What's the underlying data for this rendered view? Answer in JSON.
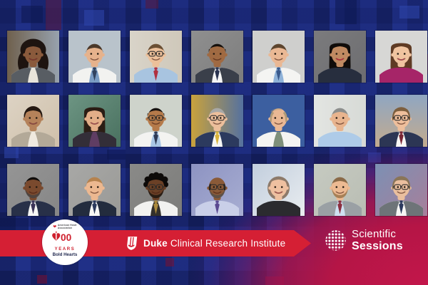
{
  "colors": {
    "bg_blue": "#1d2c7c",
    "banner_red": "#d51f34",
    "aha_red": "#cf202e",
    "navy_text": "#252c52",
    "corner_crimson": "#c2164a"
  },
  "aha": {
    "org": "American Heart Association",
    "number": "100",
    "years": "YEARS",
    "tagline": "Bold Hearts"
  },
  "banner": {
    "duke": "Duke",
    "institute": "Clinical Research Institute"
  },
  "sessions": {
    "line1": "Scientific",
    "line2": "Sessions"
  },
  "people": [
    {
      "desc": "smiling Black woman, long dark curly hair, gray blazer, tan-blue blurred office background",
      "bg": [
        "#6f604d",
        "#97a2ae"
      ],
      "bgdir": "h",
      "skin": "#8a5a3c",
      "hair": "#1e1410",
      "style": "curly-long",
      "coat": "#585d63",
      "shirt": "#e8e4da",
      "tie": null,
      "glasses": false,
      "beard": null,
      "lips": "#7a3a30"
    },
    {
      "desc": "man with short dark hair, white coat over blue shirt and navy tie, blue-gray background",
      "bg": [
        "#b9c3cb",
        "#b9c3cb"
      ],
      "bgdir": "h",
      "skin": "#e6b28c",
      "hair": "#4a382a",
      "style": "short",
      "coat": "#f2f2f0",
      "shirt": "#7a9cc4",
      "tie": "#31425f",
      "glasses": false,
      "beard": null,
      "lips": null
    },
    {
      "desc": "man with glasses, brown hair, light blue striped shirt and red tie, warm gray background",
      "bg": [
        "#d9d4c9",
        "#cfc8ba"
      ],
      "bgdir": "h",
      "skin": "#ecc09a",
      "hair": "#6b4f33",
      "style": "short",
      "coat": null,
      "shirt": "#a8c4e0",
      "tie": "#b03040",
      "glasses": true,
      "beard": null,
      "lips": null
    },
    {
      "desc": "smiling South Asian man, black hair, charcoal suit, white shirt, dark tie, gray mottled background",
      "bg": [
        "#8f8f8f",
        "#7d7d7d"
      ],
      "bgdir": "d",
      "skin": "#a06a42",
      "hair": "#15100c",
      "style": "veryshort",
      "coat": "#3a3f4a",
      "shirt": "#f5f5f5",
      "tie": "#2a3350",
      "glasses": false,
      "beard": null,
      "lips": null
    },
    {
      "desc": "young man, short brown hair, white coat, blue shirt and navy tie, light gray background",
      "bg": [
        "#cfcfcd",
        "#cfcfcd"
      ],
      "bgdir": "h",
      "skin": "#eab894",
      "hair": "#5d452e",
      "style": "short",
      "coat": "#f4f4f2",
      "shirt": "#8fb2d8",
      "tie": "#3a5a8c",
      "glasses": false,
      "beard": null,
      "lips": null
    },
    {
      "desc": "South Asian woman, long straight black hair, dark navy top, red lipstick, dark gray background",
      "bg": [
        "#7b7b7d",
        "#6d6d70"
      ],
      "bgdir": "d",
      "skin": "#c08a62",
      "hair": "#100c0a",
      "style": "long",
      "coat": null,
      "shirt": "#272e3e",
      "tie": null,
      "glasses": false,
      "beard": null,
      "lips": "#b03040"
    },
    {
      "desc": "smiling woman, long brown hair, magenta top, light gray background",
      "bg": [
        "#d7d7d5",
        "#d7d7d5"
      ],
      "bgdir": "h",
      "skin": "#f0c4a0",
      "hair": "#5f3b24",
      "style": "long",
      "coat": null,
      "shirt": "#a62568",
      "tie": null,
      "glasses": false,
      "beard": null,
      "lips": "#a34a50"
    },
    {
      "desc": "smiling South Asian woman, dark hair pulled back, tan tweed blazer, cream background",
      "bg": [
        "#ddd3c4",
        "#cfc0aa"
      ],
      "bgdir": "d",
      "skin": "#b5825a",
      "hair": "#241811",
      "style": "updo",
      "coat": "#b3a998",
      "shirt": "#efe9df",
      "tie": null,
      "glasses": false,
      "beard": null,
      "lips": "#8a4a42"
    },
    {
      "desc": "woman, long dark hair, plum top under dark blazer, teal-green blurred background",
      "bg": [
        "#6d9583",
        "#49705f"
      ],
      "bgdir": "d",
      "skin": "#e2ae88",
      "hair": "#2b1d14",
      "style": "long",
      "coat": "#332e38",
      "shirt": "#5f3d63",
      "tie": null,
      "glasses": false,
      "beard": null,
      "lips": "#9a5050"
    },
    {
      "desc": "South Asian man with glasses, white coat, light blue shirt, dark tie, pale green background",
      "bg": [
        "#ced3cb",
        "#ced3cb"
      ],
      "bgdir": "h",
      "skin": "#b57a4a",
      "hair": "#181210",
      "style": "veryshort",
      "coat": "#f3f3f1",
      "shirt": "#a9c6e4",
      "tie": "#2e3a55",
      "glasses": true,
      "beard": null,
      "lips": null
    },
    {
      "desc": "gray-haired man with glasses, navy suit, gold tie, yellow and blue lab background",
      "bg": [
        "#c9a23c",
        "#55719f"
      ],
      "bgdir": "h",
      "skin": "#ecbf9c",
      "hair": "#a8a8a6",
      "style": "short",
      "coat": "#2c3a5e",
      "shirt": "#f6f6f4",
      "tie": "#d9b33c",
      "glasses": true,
      "beard": null,
      "lips": null
    },
    {
      "desc": "man with receding sandy hair, white coat over gray-green shirt, solid blue background",
      "bg": [
        "#3c5fa0",
        "#3c5fa0"
      ],
      "bgdir": "h",
      "skin": "#eab894",
      "hair": "#b09a78",
      "style": "balding",
      "coat": "#f4f4f2",
      "shirt": "#7e8f7a",
      "tie": null,
      "glasses": false,
      "beard": null,
      "lips": null
    },
    {
      "desc": "thin man with short gray hair, light blue collared shirt, white background",
      "bg": [
        "#e3e5e2",
        "#d7dad6"
      ],
      "bgdir": "h",
      "skin": "#e8b48e",
      "hair": "#8d8f8d",
      "style": "short",
      "coat": null,
      "shirt": "#aecbe8",
      "tie": null,
      "glasses": false,
      "beard": null,
      "lips": null
    },
    {
      "desc": "man with glasses and curly light brown hair, navy suit, maroon tie, window city background",
      "bg": [
        "#8fa6c2",
        "#c3ab8e"
      ],
      "bgdir": "v",
      "skin": "#eebf9c",
      "hair": "#7d5f3e",
      "style": "shaggy",
      "coat": "#2c3654",
      "shirt": "#f7f7f5",
      "tie": "#7a2735",
      "glasses": true,
      "beard": null,
      "lips": null
    },
    {
      "desc": "Black man with salt-and-pepper beard, navy suit, white shirt, dark purple tie, gray background",
      "bg": [
        "#959595",
        "#868686"
      ],
      "bgdir": "d",
      "skin": "#7a4a2e",
      "hair": "#0f0c0a",
      "style": "veryshort",
      "coat": "#283048",
      "shirt": "#f6f6f4",
      "tie": "#3c3558",
      "glasses": false,
      "beard": "#4b4440",
      "lips": null
    },
    {
      "desc": "man with reddish-blond hair, dark navy suit, white shirt, navy tie, gray background",
      "bg": [
        "#a8a8a6",
        "#999996"
      ],
      "bgdir": "d",
      "skin": "#ecb890",
      "hair": "#b5824e",
      "style": "short",
      "coat": "#232c3e",
      "shirt": "#f7f7f5",
      "tie": "#2c3a5c",
      "glasses": false,
      "beard": null,
      "lips": null
    },
    {
      "desc": "Black man with glasses and twists, white coat over dark shirt with gold tie, gray background",
      "bg": [
        "#8a8a88",
        "#7c7c7a"
      ],
      "bgdir": "d",
      "skin": "#6a4026",
      "hair": "#0d0a08",
      "style": "twists",
      "coat": "#f2f2f0",
      "shirt": "#33302c",
      "tie": "#ab8a3e",
      "glasses": true,
      "beard": "#241a12",
      "lips": null
    },
    {
      "desc": "bald South Asian man with glasses, lavender shirt, purple tie, blue-lavender background",
      "bg": [
        "#8d93c2",
        "#a8aed2"
      ],
      "bgdir": "d",
      "skin": "#8a5a38",
      "hair": "#2a221c",
      "style": "bald",
      "coat": null,
      "shirt": "#c9cfe8",
      "tie": "#5a4990",
      "glasses": true,
      "beard": "#5a5048",
      "lips": null
    },
    {
      "desc": "older woman with gray-brown wavy bob, dark top, light blue blurred background",
      "bg": [
        "#c2cedd",
        "#e9edf0"
      ],
      "bgdir": "d",
      "skin": "#eec0a0",
      "hair": "#8d7a6a",
      "style": "bob",
      "coat": null,
      "shirt": "#2b2b2f",
      "tie": null,
      "glasses": false,
      "beard": null,
      "lips": "#a05a52"
    },
    {
      "desc": "man with sandy hair and stubble, gray jacket, light blue shirt, dark red tie, pale background",
      "bg": [
        "#c6cac1",
        "#b9bdb3"
      ],
      "bgdir": "d",
      "skin": "#ecba92",
      "hair": "#8a6a48",
      "style": "short",
      "coat": "#9aa0a4",
      "shirt": "#cfe0f0",
      "tie": "#8c3040",
      "glasses": false,
      "beard": "#a07a50",
      "lips": null
    },
    {
      "desc": "smiling man with glasses and shaggy gray-brown hair, gray suit, navy tie, colorful window background",
      "bg": [
        "#7c90b4",
        "#a77f9a"
      ],
      "bgdir": "d",
      "skin": "#eabf9e",
      "hair": "#8a7558",
      "style": "shaggy",
      "coat": "#6e7478",
      "shirt": "#f6f6f4",
      "tie": "#2c3a5e",
      "glasses": true,
      "beard": null,
      "lips": null
    }
  ]
}
